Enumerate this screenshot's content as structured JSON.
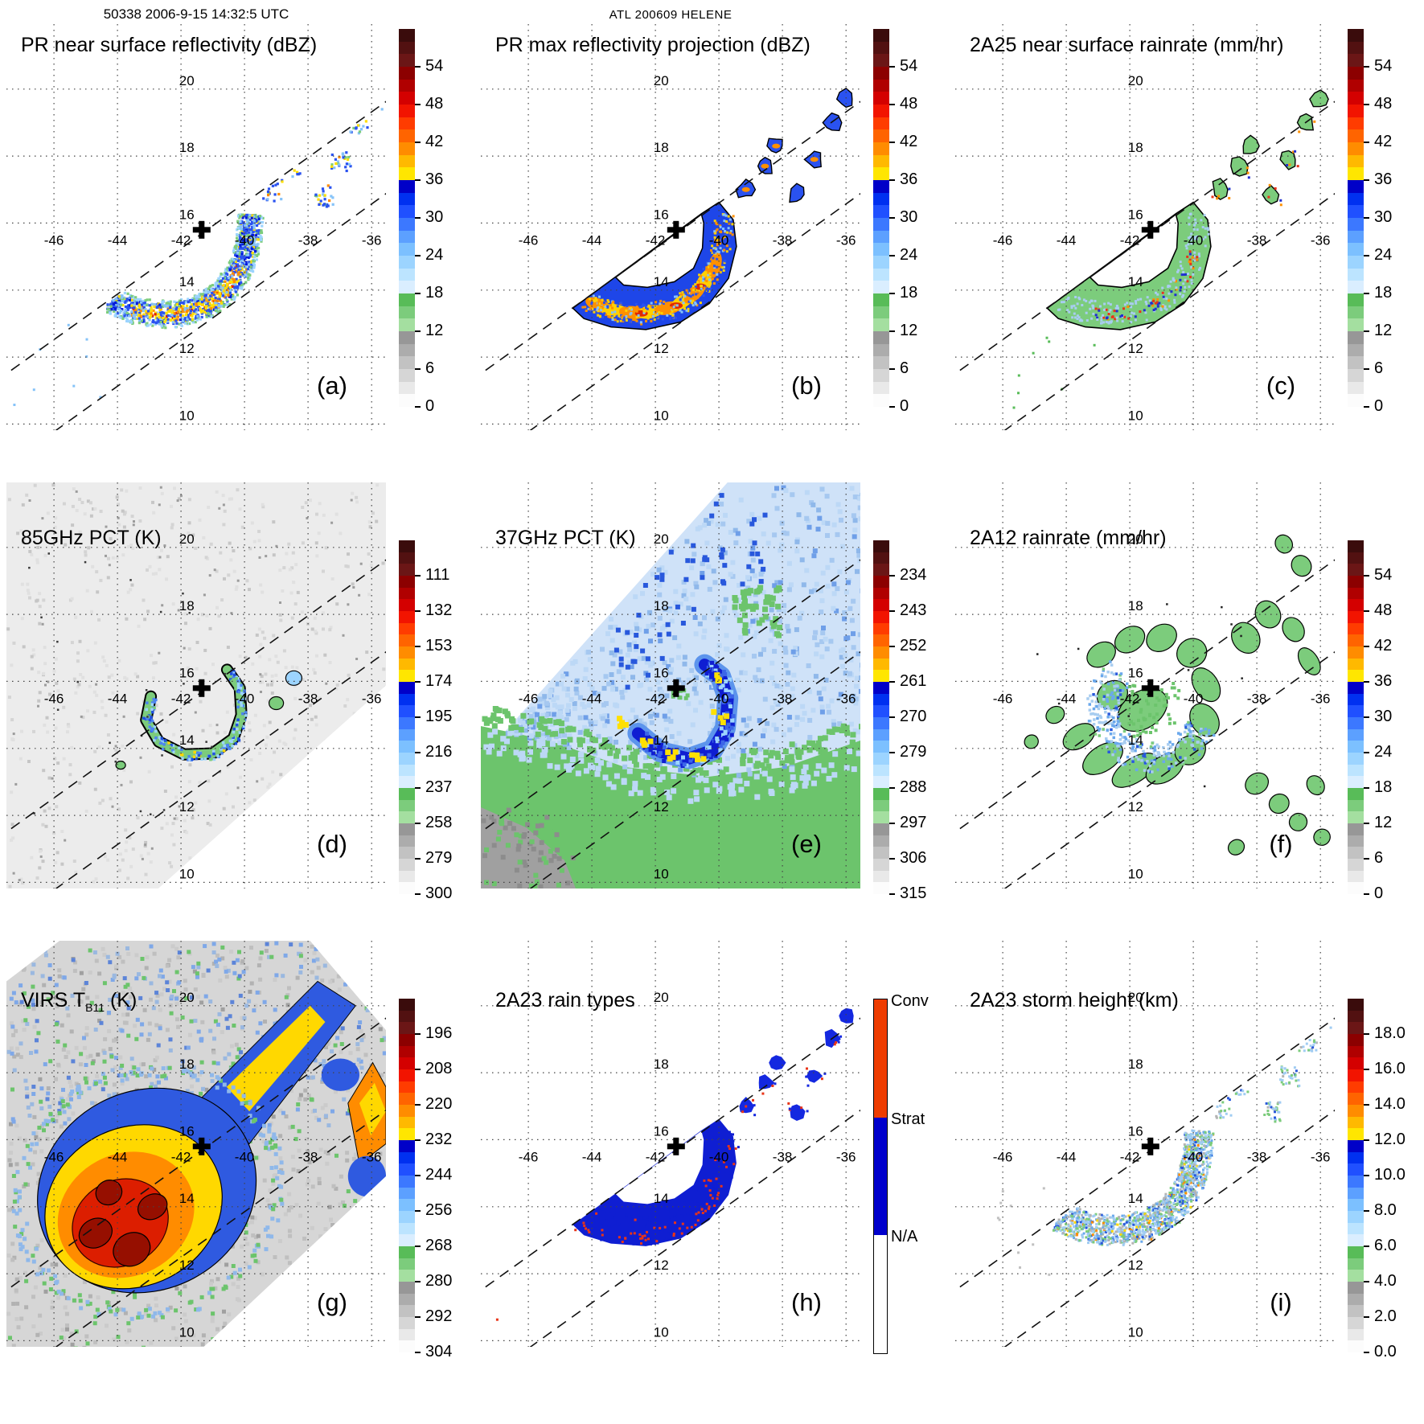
{
  "header": {
    "left_annotation": "50338 2006-9-15 14:32:5 UTC",
    "center_annotation": "ATL 200609 HELENE"
  },
  "axes": {
    "grid": "dotted",
    "swath_edge_lines": "dashed",
    "lon_ticks": [
      "-46",
      "-44",
      "-42",
      "-40",
      "-38",
      "-36"
    ],
    "lat_ticks": [
      "20",
      "18",
      "16",
      "14",
      "12",
      "10"
    ],
    "x_range": [
      -47.5,
      -36.6
    ],
    "y_range": [
      9.9,
      21.9
    ]
  },
  "storm_center": {
    "lon": -41.35,
    "lat": 15.8,
    "marker": "cross"
  },
  "colors": {
    "spectral_bar": [
      "#3a0c0c",
      "#521111",
      "#6b1616",
      "#8c0000",
      "#b00000",
      "#d40000",
      "#f21400",
      "#ff3c00",
      "#ff6400",
      "#ff8c00",
      "#ffb900",
      "#ffe600",
      "#0000c8",
      "#0030f0",
      "#2050ff",
      "#3c78ff",
      "#5ca0ff",
      "#7cc0ff",
      "#9cd4ff",
      "#bce4ff",
      "#daeeff",
      "#58bc58",
      "#7ccc7c",
      "#a4dfa0",
      "#979797",
      "#acacac",
      "#c2c2c2",
      "#d6d6d6",
      "#e9e9e9",
      "#fcfcfc"
    ],
    "rain_type_bar": [
      {
        "label": "Conv",
        "color": "#ee3c00"
      },
      {
        "label": "Strat",
        "color": "#0000cc"
      },
      {
        "label": "N/A",
        "color": "#ffffff"
      }
    ]
  },
  "chart_data": [
    {
      "type": "heatmap",
      "panel_label": "(a)",
      "title": "PR near surface reflectivity (dBZ)",
      "colorbar_style": "spectral",
      "colorbar_ticks": [
        "54",
        "48",
        "42",
        "36",
        "30",
        "24",
        "18",
        "12",
        "6",
        "0"
      ]
    },
    {
      "type": "heatmap",
      "panel_label": "(b)",
      "title": "PR max reflectivity projection (dBZ)",
      "colorbar_style": "spectral",
      "colorbar_ticks": [
        "54",
        "48",
        "42",
        "36",
        "30",
        "24",
        "18",
        "12",
        "6",
        "0"
      ]
    },
    {
      "type": "heatmap",
      "panel_label": "(c)",
      "title": "2A25 near surface rainrate (mm/hr)",
      "colorbar_style": "spectral",
      "colorbar_ticks": [
        "54",
        "48",
        "42",
        "36",
        "30",
        "24",
        "18",
        "12",
        "6",
        "0"
      ]
    },
    {
      "type": "heatmap",
      "panel_label": "(d)",
      "title": "85GHz PCT (K)",
      "colorbar_style": "spectral",
      "colorbar_ticks": [
        "111",
        "132",
        "153",
        "174",
        "195",
        "216",
        "237",
        "258",
        "279",
        "300"
      ]
    },
    {
      "type": "heatmap",
      "panel_label": "(e)",
      "title": "37GHz PCT (K)",
      "colorbar_style": "spectral",
      "colorbar_ticks": [
        "234",
        "243",
        "252",
        "261",
        "270",
        "279",
        "288",
        "297",
        "306",
        "315"
      ]
    },
    {
      "type": "heatmap",
      "panel_label": "(f)",
      "title": "2A12 rainrate (mm/hr)",
      "colorbar_style": "spectral",
      "colorbar_ticks": [
        "54",
        "48",
        "42",
        "36",
        "30",
        "24",
        "18",
        "12",
        "6",
        "0"
      ]
    },
    {
      "type": "heatmap",
      "panel_label": "(g)",
      "title": "VIRS TB11 (K)",
      "title_parts": {
        "pre": "VIRS T",
        "sub": "B11",
        "post": " (K)"
      },
      "colorbar_style": "spectral",
      "colorbar_ticks": [
        "196",
        "208",
        "220",
        "232",
        "244",
        "256",
        "268",
        "280",
        "292",
        "304"
      ]
    },
    {
      "type": "heatmap",
      "panel_label": "(h)",
      "title": "2A23 rain types",
      "colorbar_style": "rain_types",
      "colorbar_labels": [
        "Conv",
        "Strat",
        "N/A"
      ],
      "colorbar_ticks": []
    },
    {
      "type": "heatmap",
      "panel_label": "(i)",
      "title": "2A23 storm height (km)",
      "colorbar_style": "spectral",
      "colorbar_ticks": [
        "18.0",
        "16.0",
        "14.0",
        "12.0",
        "10.0",
        "8.0",
        "6.0",
        "4.0",
        "2.0",
        "0.0"
      ]
    }
  ]
}
